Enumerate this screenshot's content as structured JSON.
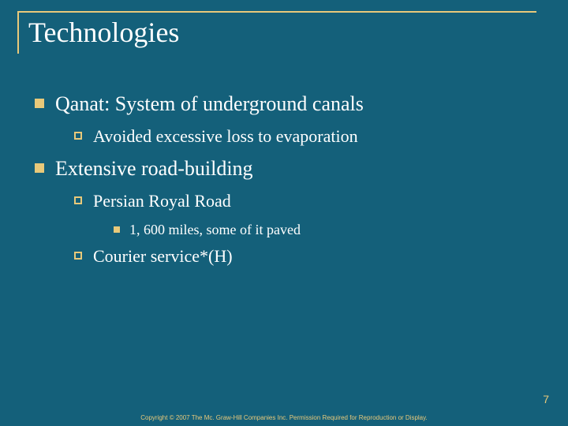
{
  "slide": {
    "background_color": "#14607a",
    "accent_color": "#e8c97a",
    "text_color": "#ffffff",
    "title": "Technologies",
    "title_fontsize": 36,
    "bullets": {
      "lvl1_0": "Qanat: System of underground canals",
      "lvl2_0": "Avoided excessive loss to evaporation",
      "lvl1_1": "Extensive road-building",
      "lvl2_1": "Persian Royal Road",
      "lvl3_0": "1, 600 miles, some of it paved",
      "lvl2_2": "Courier service*(H)"
    },
    "page_number": "7",
    "copyright": "Copyright © 2007 The Mc. Graw-Hill Companies Inc. Permission Required for Reproduction or Display."
  }
}
